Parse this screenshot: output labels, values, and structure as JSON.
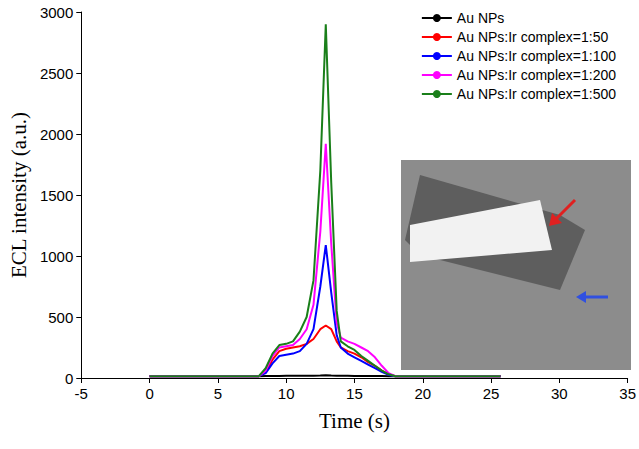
{
  "chart_data": {
    "type": "line",
    "x_label": "Time (s)",
    "y_label": "ECL intensity (a.u.)",
    "x": [
      0,
      2,
      4,
      6,
      8,
      8.5,
      9,
      9.5,
      10,
      10.5,
      11,
      11.5,
      12,
      12.5,
      12.9,
      13.3,
      13.7,
      14,
      14.5,
      15,
      15.5,
      16,
      16.5,
      17,
      17.5,
      18,
      20,
      22,
      24,
      25.7
    ],
    "series": [
      {
        "name": "Au NPs",
        "color": "#000000",
        "values": [
          15,
          15,
          15,
          15,
          15,
          16,
          17,
          17,
          18,
          18,
          18,
          19,
          19,
          20,
          22,
          20,
          19,
          18,
          18,
          17,
          17,
          16,
          16,
          16,
          15,
          15,
          15,
          15,
          15,
          15
        ]
      },
      {
        "name": "Au NPs:Ir complex=1:50",
        "color": "#ff0000",
        "values": [
          15,
          15,
          15,
          15,
          15,
          50,
          150,
          220,
          240,
          250,
          260,
          280,
          320,
          400,
          430,
          400,
          300,
          250,
          220,
          200,
          170,
          130,
          100,
          60,
          30,
          15,
          15,
          15,
          15,
          15
        ]
      },
      {
        "name": "Au NPs:Ir complex=1:100",
        "color": "#0000ff",
        "values": [
          15,
          15,
          15,
          15,
          15,
          40,
          120,
          180,
          190,
          200,
          220,
          280,
          400,
          750,
          1090,
          700,
          350,
          250,
          200,
          170,
          140,
          110,
          80,
          50,
          25,
          15,
          15,
          15,
          15,
          15
        ]
      },
      {
        "name": "Au NPs:Ir complex=1:200",
        "color": "#ff00ff",
        "values": [
          15,
          15,
          15,
          15,
          15,
          60,
          180,
          250,
          260,
          270,
          320,
          400,
          600,
          1200,
          1920,
          1100,
          450,
          330,
          300,
          280,
          250,
          220,
          170,
          100,
          40,
          15,
          15,
          15,
          15,
          15
        ]
      },
      {
        "name": "Au NPs:Ir complex=1:500",
        "color": "#1a7f1a",
        "values": [
          15,
          15,
          15,
          15,
          15,
          80,
          200,
          270,
          280,
          300,
          380,
          500,
          800,
          1700,
          2900,
          1600,
          550,
          300,
          260,
          230,
          180,
          140,
          100,
          60,
          30,
          15,
          15,
          15,
          15,
          15
        ]
      }
    ],
    "xlim": [
      -5,
      35
    ],
    "xticks": [
      -5,
      0,
      5,
      10,
      15,
      20,
      25,
      30,
      35
    ],
    "ylim": [
      0,
      3000
    ],
    "yticks": [
      0,
      500,
      1000,
      1500,
      2000,
      2500,
      3000
    ],
    "grid": false,
    "legend": "upper right"
  }
}
